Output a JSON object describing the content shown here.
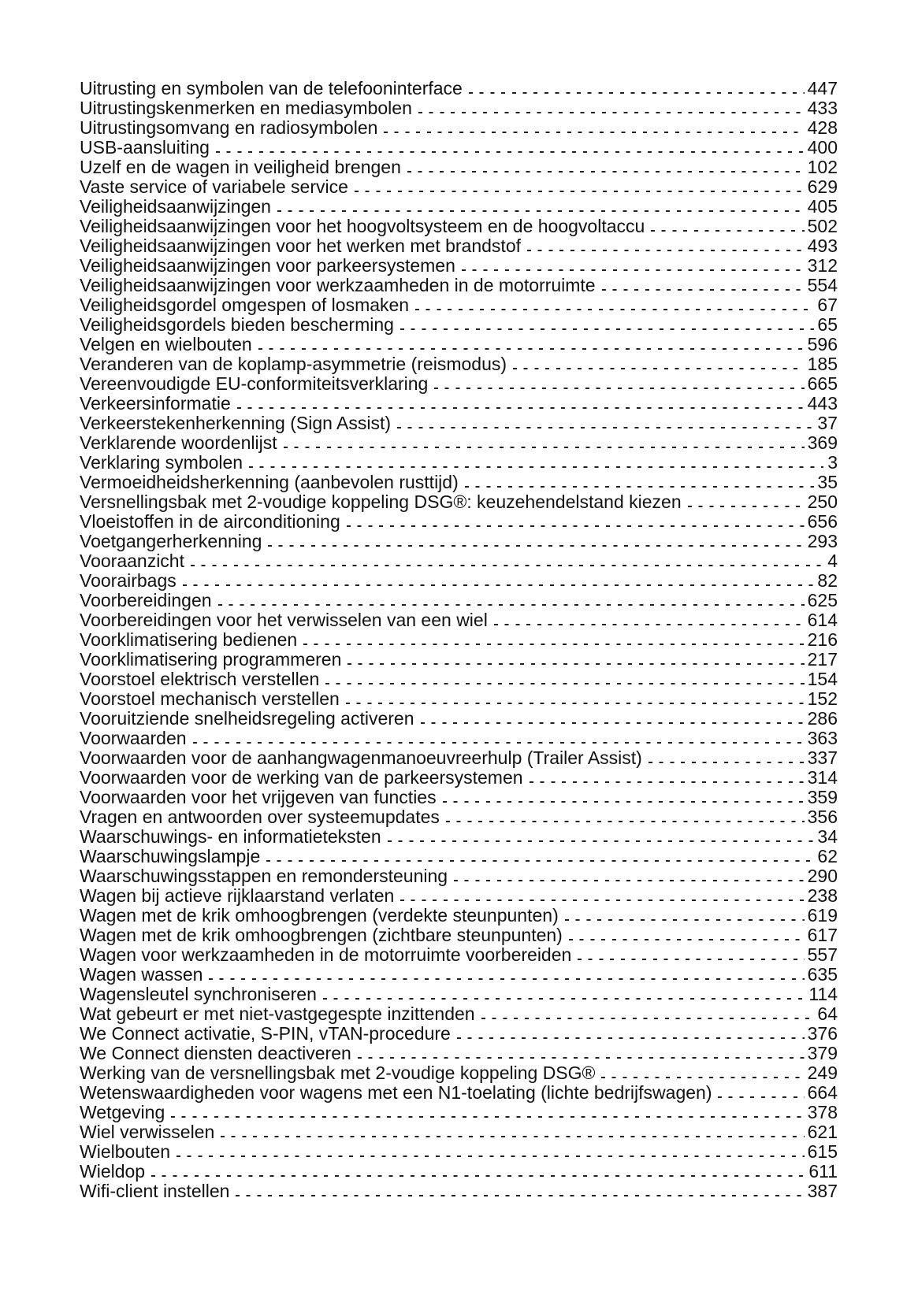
{
  "index_entries": [
    {
      "title": "Uitrusting en symbolen van de telefooninterface",
      "page": "447"
    },
    {
      "title": "Uitrustingskenmerken en mediasymbolen",
      "page": "433"
    },
    {
      "title": "Uitrustingsomvang en radiosymbolen",
      "page": "428"
    },
    {
      "title": "USB-aansluiting",
      "page": "400"
    },
    {
      "title": "Uzelf en de wagen in veiligheid brengen",
      "page": "102"
    },
    {
      "title": "Vaste service of variabele service",
      "page": "629"
    },
    {
      "title": "Veiligheidsaanwijzingen",
      "page": "405"
    },
    {
      "title": "Veiligheidsaanwijzingen voor het hoogvoltsysteem en de hoogvoltaccu",
      "page": "502"
    },
    {
      "title": "Veiligheidsaanwijzingen voor het werken met brandstof",
      "page": "493"
    },
    {
      "title": "Veiligheidsaanwijzingen voor parkeersystemen",
      "page": "312"
    },
    {
      "title": "Veiligheidsaanwijzingen voor werkzaamheden in de motorruimte",
      "page": "554"
    },
    {
      "title": "Veiligheidsgordel omgespen of losmaken",
      "page": "67"
    },
    {
      "title": "Veiligheidsgordels bieden bescherming",
      "page": "65"
    },
    {
      "title": "Velgen en wielbouten",
      "page": "596"
    },
    {
      "title": "Veranderen van de koplamp-asymmetrie (reismodus)",
      "page": "185"
    },
    {
      "title": "Vereenvoudigde EU-conformiteitsverklaring",
      "page": "665"
    },
    {
      "title": "Verkeersinformatie",
      "page": "443"
    },
    {
      "title": "Verkeerstekenherkenning (Sign Assist)",
      "page": "37"
    },
    {
      "title": "Verklarende woordenlijst",
      "page": "369"
    },
    {
      "title": "Verklaring symbolen",
      "page": "3"
    },
    {
      "title": "Vermoeidheidsherkenning (aanbevolen rusttijd)",
      "page": "35"
    },
    {
      "title": "Versnellingsbak met 2-voudige koppeling DSG®: keuzehendelstand kiezen",
      "page": "250"
    },
    {
      "title": "Vloeistoffen in de airconditioning",
      "page": "656"
    },
    {
      "title": "Voetgangerherkenning",
      "page": "293"
    },
    {
      "title": "Vooraanzicht",
      "page": "4"
    },
    {
      "title": "Voorairbags",
      "page": "82"
    },
    {
      "title": "Voorbereidingen",
      "page": "625"
    },
    {
      "title": "Voorbereidingen voor het verwisselen van een wiel",
      "page": "614"
    },
    {
      "title": "Voorklimatisering bedienen",
      "page": "216"
    },
    {
      "title": "Voorklimatisering programmeren",
      "page": "217"
    },
    {
      "title": "Voorstoel elektrisch verstellen",
      "page": "154"
    },
    {
      "title": "Voorstoel mechanisch verstellen",
      "page": "152"
    },
    {
      "title": "Vooruitziende snelheidsregeling activeren",
      "page": "286"
    },
    {
      "title": "Voorwaarden",
      "page": "363"
    },
    {
      "title": "Voorwaarden voor de aanhangwagenmanoeuvreerhulp (Trailer Assist)",
      "page": "337"
    },
    {
      "title": "Voorwaarden voor de werking van de parkeersystemen",
      "page": "314"
    },
    {
      "title": "Voorwaarden voor het vrijgeven van functies",
      "page": "359"
    },
    {
      "title": "Vragen en antwoorden over systeemupdates",
      "page": "356"
    },
    {
      "title": "Waarschuwings- en informatieteksten",
      "page": "34"
    },
    {
      "title": "Waarschuwingslampje",
      "page": "62"
    },
    {
      "title": "Waarschuwingsstappen en remondersteuning",
      "page": "290"
    },
    {
      "title": "Wagen bij actieve rijklaarstand verlaten",
      "page": "238"
    },
    {
      "title": "Wagen met de krik omhoogbrengen (verdekte steunpunten)",
      "page": "619"
    },
    {
      "title": "Wagen met de krik omhoogbrengen (zichtbare steunpunten)",
      "page": "617"
    },
    {
      "title": "Wagen voor werkzaamheden in de motorruimte voorbereiden",
      "page": "557"
    },
    {
      "title": "Wagen wassen",
      "page": "635"
    },
    {
      "title": "Wagensleutel synchroniseren",
      "page": "114"
    },
    {
      "title": "Wat gebeurt er met niet-vastgegespte inzittenden",
      "page": "64"
    },
    {
      "title": "We Connect activatie, S-PIN, vTAN-procedure",
      "page": "376"
    },
    {
      "title": "We Connect diensten deactiveren",
      "page": "379"
    },
    {
      "title": "Werking van de versnellingsbak met 2-voudige koppeling DSG®",
      "page": "249"
    },
    {
      "title": "Wetenswaardigheden voor wagens met een N1-toelating (lichte bedrijfswagen)",
      "page": "664"
    },
    {
      "title": "Wetgeving",
      "page": "378"
    },
    {
      "title": "Wiel verwisselen",
      "page": "621"
    },
    {
      "title": "Wielbouten",
      "page": "615"
    },
    {
      "title": "Wieldop",
      "page": "611"
    },
    {
      "title": "Wifi-client instellen",
      "page": "387"
    }
  ]
}
